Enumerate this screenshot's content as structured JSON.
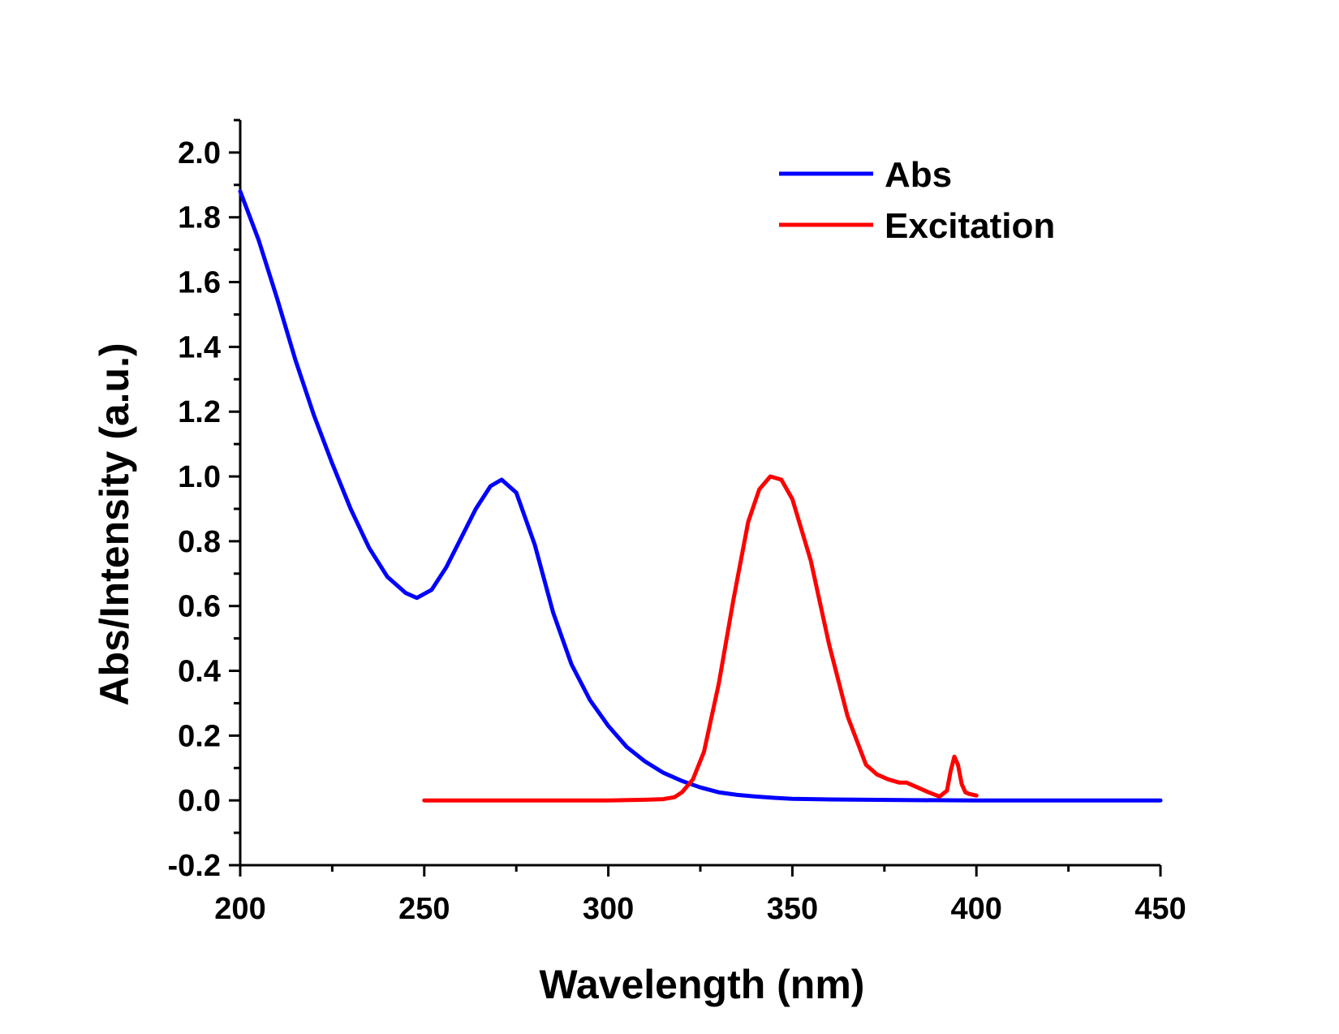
{
  "chart_data": {
    "type": "line",
    "title": "",
    "xlabel": "Wavelength (nm)",
    "ylabel": "Abs/Intensity (a.u.)",
    "xlim": [
      200,
      450
    ],
    "ylim": [
      -0.2,
      2.1
    ],
    "x_ticks": [
      200,
      250,
      300,
      350,
      400,
      450
    ],
    "x_tick_labels": [
      "200",
      "250",
      "300",
      "350",
      "400",
      "450"
    ],
    "y_ticks": [
      -0.2,
      0.0,
      0.2,
      0.4,
      0.6,
      0.8,
      1.0,
      1.2,
      1.4,
      1.6,
      1.8,
      2.0
    ],
    "y_tick_labels": [
      "-0.2",
      "0.0",
      "0.2",
      "0.4",
      "0.6",
      "0.8",
      "1.0",
      "1.2",
      "1.4",
      "1.6",
      "1.8",
      "2.0"
    ],
    "grid": false,
    "legend_position": "top-right",
    "series": [
      {
        "name": "Abs",
        "color": "#0000ff",
        "x": [
          200,
          205,
          210,
          215,
          220,
          225,
          230,
          235,
          240,
          245,
          248,
          252,
          256,
          260,
          264,
          268,
          271,
          275,
          280,
          285,
          290,
          295,
          300,
          305,
          310,
          315,
          320,
          325,
          330,
          335,
          340,
          345,
          350,
          360,
          370,
          380,
          400,
          420,
          450
        ],
        "y": [
          1.88,
          1.73,
          1.55,
          1.36,
          1.19,
          1.04,
          0.9,
          0.78,
          0.69,
          0.64,
          0.625,
          0.65,
          0.72,
          0.81,
          0.9,
          0.97,
          0.99,
          0.95,
          0.79,
          0.58,
          0.42,
          0.31,
          0.23,
          0.165,
          0.12,
          0.085,
          0.06,
          0.04,
          0.025,
          0.017,
          0.012,
          0.008,
          0.005,
          0.003,
          0.002,
          0.001,
          0.0,
          0.0,
          0.0
        ]
      },
      {
        "name": "Excitation",
        "color": "#ff0000",
        "x": [
          250,
          260,
          280,
          300,
          310,
          315,
          318,
          320,
          323,
          326,
          330,
          334,
          338,
          341,
          344,
          347,
          350,
          355,
          360,
          365,
          370,
          373,
          376,
          379,
          381,
          384,
          387,
          390,
          392,
          393,
          394,
          395,
          396,
          397,
          398,
          400
        ],
        "y": [
          0.0,
          0.0,
          0.0,
          0.0,
          0.002,
          0.004,
          0.01,
          0.025,
          0.065,
          0.15,
          0.36,
          0.62,
          0.86,
          0.96,
          1.0,
          0.99,
          0.93,
          0.74,
          0.48,
          0.26,
          0.11,
          0.08,
          0.065,
          0.055,
          0.055,
          0.04,
          0.025,
          0.012,
          0.03,
          0.09,
          0.135,
          0.11,
          0.05,
          0.025,
          0.02,
          0.015
        ]
      }
    ]
  }
}
